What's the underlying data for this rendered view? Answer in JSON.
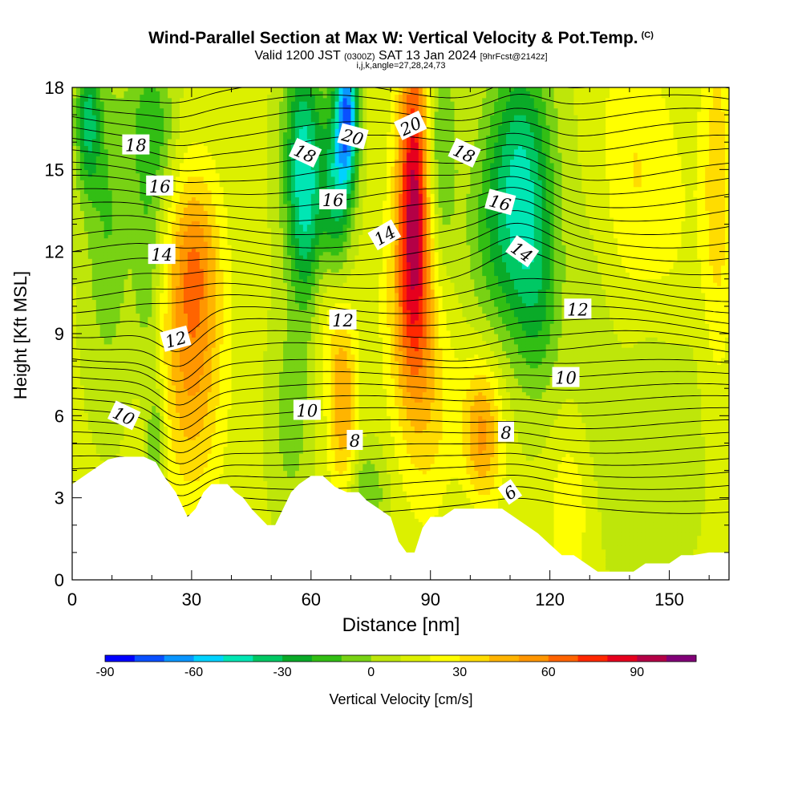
{
  "title": {
    "main": "Wind-Parallel Section at Max W: Vertical Velocity & Pot.Temp.",
    "mark": "(C)",
    "valid": "Valid 1200 JST",
    "valid_utc": "(0300Z)",
    "date": "SAT 13 Jan 2024",
    "fcst": "[9hrFcst@2142z]",
    "ijk": "i,j,k,angle=27,28,24,73"
  },
  "chart_data": {
    "type": "heatmap",
    "xlabel": "Distance [nm]",
    "ylabel": "Height [Kft MSL]",
    "xlim": [
      0,
      165
    ],
    "ylim": [
      0,
      18
    ],
    "x_ticks": [
      0,
      30,
      60,
      90,
      120,
      150
    ],
    "y_ticks": [
      0,
      3,
      6,
      9,
      12,
      15,
      18
    ],
    "colorbar": {
      "label": "Vertical Velocity [cm/s]",
      "min": -90,
      "max": 110,
      "ticks": [
        -90,
        -60,
        -30,
        0,
        30,
        60,
        90
      ],
      "levels": [
        -90,
        -80,
        -70,
        -60,
        -50,
        -40,
        -30,
        -20,
        -10,
        0,
        10,
        20,
        30,
        40,
        50,
        60,
        70,
        80,
        90,
        100,
        110
      ],
      "colors": [
        "#0000ff",
        "#0a50ff",
        "#0a96ff",
        "#00d2ff",
        "#00e6b4",
        "#00c864",
        "#0aaa28",
        "#32be14",
        "#78d214",
        "#bee60a",
        "#dcf000",
        "#ffff00",
        "#ffdc00",
        "#ffb400",
        "#ff9600",
        "#ff6400",
        "#ff2800",
        "#e6001e",
        "#b40046",
        "#820078"
      ]
    },
    "velocity_features": [
      {
        "x": 4,
        "z": 16.8,
        "sx": 2.2,
        "sz": 1.8,
        "w": -42
      },
      {
        "x": 9,
        "z": 13.0,
        "sx": 4.0,
        "sz": 4.0,
        "w": -22
      },
      {
        "x": 20,
        "z": 16.5,
        "sx": 4.0,
        "sz": 2.0,
        "w": -30
      },
      {
        "x": 19,
        "z": 11.2,
        "sx": 2.5,
        "sz": 2.5,
        "w": -22
      },
      {
        "x": 21,
        "z": 5.0,
        "sx": 1.6,
        "sz": 1.5,
        "w": -28
      },
      {
        "x": 30,
        "z": 8.5,
        "sx": 5.5,
        "sz": 3.8,
        "w": 42
      },
      {
        "x": 31,
        "z": 12.0,
        "sx": 4.0,
        "sz": 2.0,
        "w": 22
      },
      {
        "x": 55,
        "z": 6.0,
        "sx": 3.5,
        "sz": 2.5,
        "w": -18
      },
      {
        "x": 58,
        "z": 15.5,
        "sx": 3.5,
        "sz": 3.0,
        "w": -50
      },
      {
        "x": 59,
        "z": 12.5,
        "sx": 3.0,
        "sz": 2.5,
        "w": -20
      },
      {
        "x": 69,
        "z": 17.0,
        "sx": 2.0,
        "sz": 2.0,
        "w": -80
      },
      {
        "x": 66,
        "z": 14.0,
        "sx": 2.5,
        "sz": 2.5,
        "w": -40
      },
      {
        "x": 68,
        "z": 6.5,
        "sx": 2.5,
        "sz": 2.5,
        "w": 38
      },
      {
        "x": 64,
        "z": 10.0,
        "sx": 2.5,
        "sz": 2.0,
        "w": 15
      },
      {
        "x": 74,
        "z": 3.2,
        "sx": 3.5,
        "sz": 1.2,
        "w": -22
      },
      {
        "x": 86,
        "z": 14.5,
        "sx": 3.0,
        "sz": 4.0,
        "w": 75
      },
      {
        "x": 85,
        "z": 10.0,
        "sx": 4.5,
        "sz": 3.0,
        "w": 30
      },
      {
        "x": 92,
        "z": 15.5,
        "sx": 3.0,
        "sz": 3.0,
        "w": -28
      },
      {
        "x": 113,
        "z": 14.5,
        "sx": 5.5,
        "sz": 3.5,
        "w": -52
      },
      {
        "x": 105,
        "z": 12.5,
        "sx": 5.0,
        "sz": 3.0,
        "w": -18
      },
      {
        "x": 117,
        "z": 10.0,
        "sx": 4.0,
        "sz": 2.5,
        "w": -22
      },
      {
        "x": 103,
        "z": 5.3,
        "sx": 3.5,
        "sz": 2.0,
        "w": 42
      },
      {
        "x": 90,
        "z": 6.0,
        "sx": 5.0,
        "sz": 3.0,
        "w": 18
      },
      {
        "x": 132,
        "z": 9.0,
        "sx": 5.0,
        "sz": 5.0,
        "w": -8
      },
      {
        "x": 145,
        "z": 5.0,
        "sx": 5.0,
        "sz": 4.0,
        "w": -12
      },
      {
        "x": 158,
        "z": 7.0,
        "sx": 6.0,
        "sz": 4.0,
        "w": -5
      },
      {
        "x": 125,
        "z": 2.5,
        "sx": 3.5,
        "sz": 2.0,
        "w": 18
      },
      {
        "x": 100,
        "z": 2.2,
        "sx": 4.0,
        "sz": 1.5,
        "w": -8
      },
      {
        "x": 162,
        "z": 14.0,
        "sx": 3.0,
        "sz": 5.0,
        "w": 25
      },
      {
        "x": 150,
        "z": 13.0,
        "sx": 5.0,
        "sz": 3.0,
        "w": 10
      },
      {
        "x": 140,
        "z": 15.0,
        "sx": 6.0,
        "sz": 4.0,
        "w": 18
      }
    ],
    "velocity_background": 12,
    "theta_levels_C": [
      6,
      8,
      10,
      12,
      14,
      16,
      18,
      20
    ],
    "theta_labels": [
      {
        "text": "18",
        "x": 16,
        "z": 15.9,
        "rot": 0
      },
      {
        "text": "16",
        "x": 22,
        "z": 14.4,
        "rot": 0
      },
      {
        "text": "14",
        "x": 22.5,
        "z": 11.9,
        "rot": 0
      },
      {
        "text": "12",
        "x": 26,
        "z": 8.8,
        "rot": -15
      },
      {
        "text": "10",
        "x": 13,
        "z": 6.0,
        "rot": 25
      },
      {
        "text": "18",
        "x": 58.5,
        "z": 15.6,
        "rot": 25
      },
      {
        "text": "20",
        "x": 70.5,
        "z": 16.2,
        "rot": 15
      },
      {
        "text": "16",
        "x": 65.5,
        "z": 13.9,
        "rot": 0
      },
      {
        "text": "20",
        "x": 85,
        "z": 16.6,
        "rot": -25
      },
      {
        "text": "14",
        "x": 78.5,
        "z": 12.6,
        "rot": -30
      },
      {
        "text": "12",
        "x": 68,
        "z": 9.5,
        "rot": 0
      },
      {
        "text": "10",
        "x": 59,
        "z": 6.2,
        "rot": 0
      },
      {
        "text": "8",
        "x": 71,
        "z": 5.1,
        "rot": 0
      },
      {
        "text": "18",
        "x": 98.5,
        "z": 15.6,
        "rot": 25
      },
      {
        "text": "16",
        "x": 107.5,
        "z": 13.8,
        "rot": 15
      },
      {
        "text": "14",
        "x": 113,
        "z": 12.0,
        "rot": 35
      },
      {
        "text": "12",
        "x": 127,
        "z": 9.9,
        "rot": 0
      },
      {
        "text": "10",
        "x": 124,
        "z": 7.4,
        "rot": 0
      },
      {
        "text": "8",
        "x": 109,
        "z": 5.4,
        "rot": 0
      },
      {
        "text": "6",
        "x": 110,
        "z": 3.2,
        "rot": -35
      }
    ],
    "terrain_kft": [
      [
        0,
        3.5
      ],
      [
        3,
        3.8
      ],
      [
        6,
        4.1
      ],
      [
        9,
        4.4
      ],
      [
        12,
        4.5
      ],
      [
        15,
        4.5
      ],
      [
        18,
        4.5
      ],
      [
        21,
        4.3
      ],
      [
        23,
        3.8
      ],
      [
        26,
        3.2
      ],
      [
        29,
        2.3
      ],
      [
        31,
        2.6
      ],
      [
        33,
        3.2
      ],
      [
        35,
        3.5
      ],
      [
        37,
        3.5
      ],
      [
        39,
        3.5
      ],
      [
        41,
        3.2
      ],
      [
        43,
        3.0
      ],
      [
        45,
        2.6
      ],
      [
        47,
        2.3
      ],
      [
        49,
        2.0
      ],
      [
        51,
        2.0
      ],
      [
        53,
        2.6
      ],
      [
        55,
        3.2
      ],
      [
        57,
        3.5
      ],
      [
        60,
        3.8
      ],
      [
        63,
        3.8
      ],
      [
        66,
        3.4
      ],
      [
        69,
        3.2
      ],
      [
        72,
        3.2
      ],
      [
        74,
        2.9
      ],
      [
        77,
        2.6
      ],
      [
        80,
        2.3
      ],
      [
        82,
        1.4
      ],
      [
        84,
        1.0
      ],
      [
        86,
        1.0
      ],
      [
        88,
        1.9
      ],
      [
        90,
        2.3
      ],
      [
        93,
        2.3
      ],
      [
        96,
        2.6
      ],
      [
        99,
        2.6
      ],
      [
        102,
        2.6
      ],
      [
        105,
        2.6
      ],
      [
        108,
        2.6
      ],
      [
        111,
        2.3
      ],
      [
        114,
        2.0
      ],
      [
        117,
        1.7
      ],
      [
        120,
        1.3
      ],
      [
        123,
        0.9
      ],
      [
        126,
        0.9
      ],
      [
        129,
        0.6
      ],
      [
        132,
        0.3
      ],
      [
        135,
        0.3
      ],
      [
        138,
        0.3
      ],
      [
        141,
        0.3
      ],
      [
        144,
        0.6
      ],
      [
        147,
        0.6
      ],
      [
        150,
        0.6
      ],
      [
        153,
        0.9
      ],
      [
        156,
        0.9
      ],
      [
        160,
        1.0
      ],
      [
        165,
        1.0
      ]
    ]
  }
}
